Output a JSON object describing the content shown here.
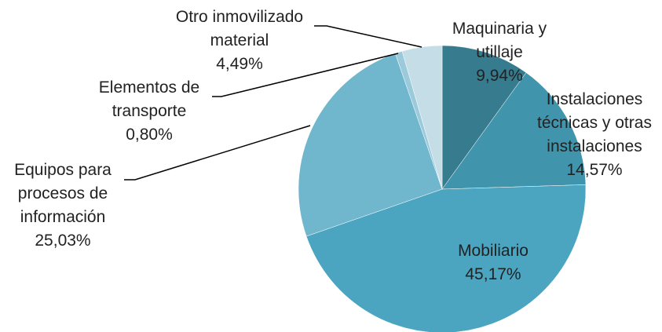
{
  "chart_data": {
    "type": "pie",
    "categories": [
      "Maquinaria y utillaje",
      "Instalaciones técnicas y otras instalaciones",
      "Mobiliario",
      "Equipos para procesos de información",
      "Elementos de transporte",
      "Otro inmovilizado material"
    ],
    "values": [
      9.94,
      14.57,
      45.17,
      25.03,
      0.8,
      4.49
    ],
    "value_labels": [
      "9,94%",
      "14,57%",
      "45,17%",
      "25,03%",
      "0,80%",
      "4,49%"
    ],
    "colors": [
      "#367b8e",
      "#4095ad",
      "#4ba5c1",
      "#70b6cd",
      "#9bcadb",
      "#c4dde6"
    ]
  }
}
